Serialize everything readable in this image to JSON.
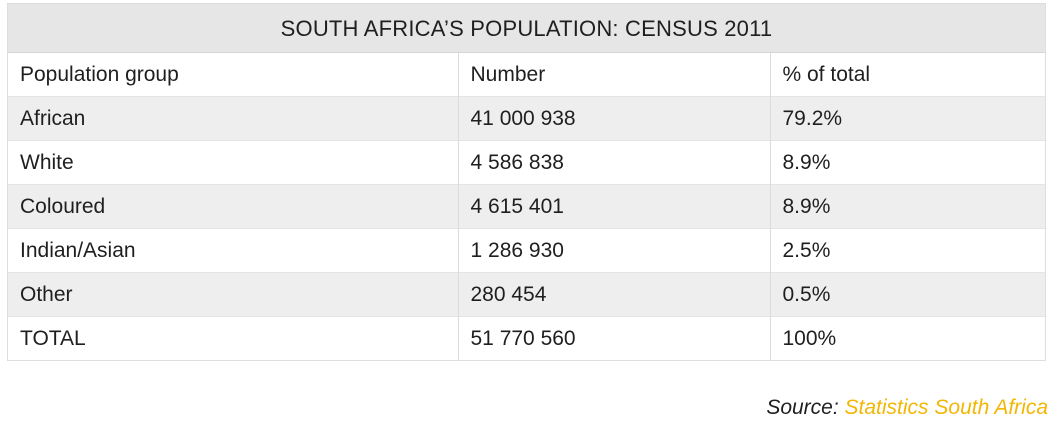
{
  "table": {
    "title": "SOUTH AFRICA’S POPULATION: CENSUS 2011",
    "headers": [
      "Population group",
      "Number",
      "% of total"
    ],
    "rows": [
      [
        "African",
        "41 000 938",
        "79.2%"
      ],
      [
        "White",
        "4 586 838",
        "8.9%"
      ],
      [
        "Coloured",
        "4 615 401",
        "8.9%"
      ],
      [
        "Indian/Asian",
        "1 286 930",
        "2.5%"
      ],
      [
        "Other",
        "280 454",
        "0.5%"
      ],
      [
        "TOTAL",
        "51 770 560",
        "100%"
      ]
    ]
  },
  "source": {
    "label": "Source: ",
    "link_text": "Statistics South Africa",
    "link_color": "#f2b705"
  }
}
